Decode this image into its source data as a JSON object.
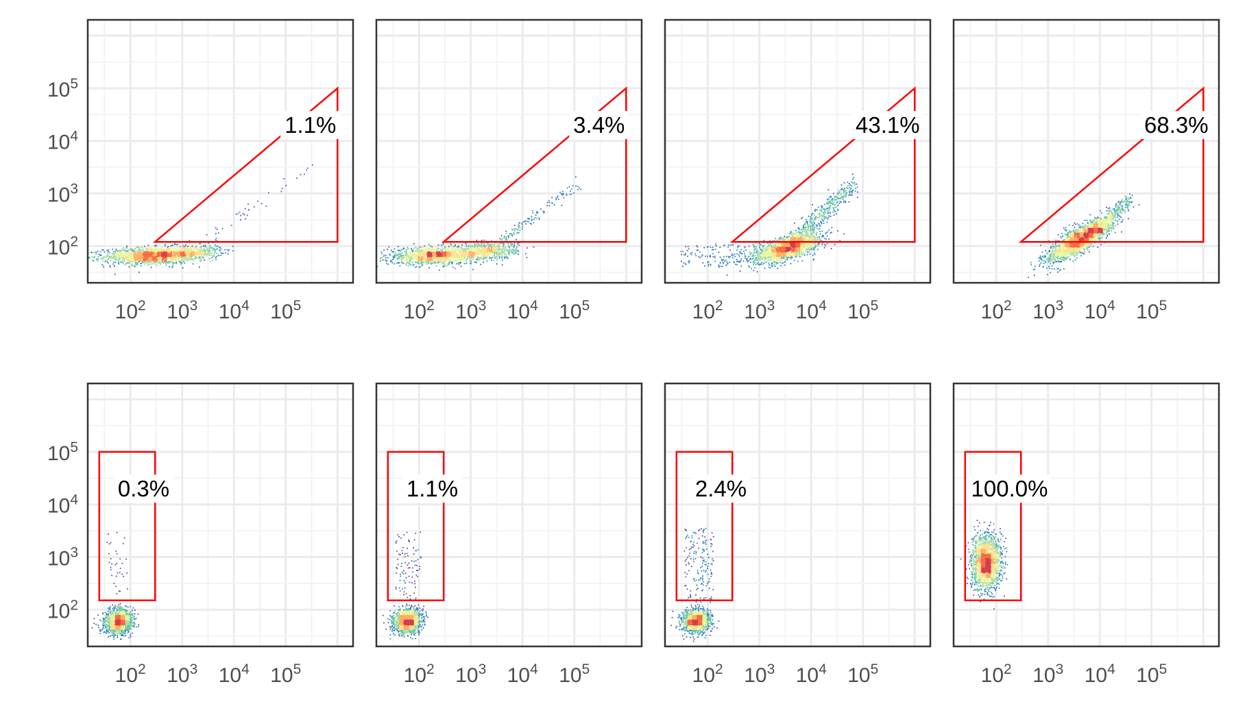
{
  "colors": {
    "gate": "#ff0000",
    "panel_border": "#333333",
    "grid_major": "#ebebeb",
    "grid_minor": "#f2f2f2",
    "tick_text": "#4d4d4d",
    "density_palette": [
      "#5e4fa2",
      "#3288bd",
      "#66c2a5",
      "#abdda4",
      "#e6f598",
      "#fee08b",
      "#fdae61",
      "#f46d43",
      "#d53e4f"
    ]
  },
  "chart_data": [
    {
      "type": "scatter",
      "title": "",
      "xlabel": "",
      "ylabel": "",
      "scale": "log10",
      "xlim": [
        15,
        2000000
      ],
      "ylim": [
        20,
        2000000
      ],
      "grid": true,
      "x_ticks": [
        100,
        1000,
        10000,
        100000
      ],
      "y_ticks": [
        100,
        1000,
        10000,
        100000
      ],
      "x_tick_labels": [
        {
          "base": "10",
          "exp": "2"
        },
        {
          "base": "10",
          "exp": "3"
        },
        {
          "base": "10",
          "exp": "4"
        },
        {
          "base": "10",
          "exp": "5"
        }
      ],
      "y_tick_labels": [
        {
          "base": "10",
          "exp": "2"
        },
        {
          "base": "10",
          "exp": "3"
        },
        {
          "base": "10",
          "exp": "4"
        },
        {
          "base": "10",
          "exp": "5"
        }
      ],
      "gate": {
        "shape": "polygon",
        "points": [
          [
            300,
            120
          ],
          [
            1000000,
            100000
          ],
          [
            1000000,
            120
          ]
        ]
      },
      "panels": [
        {
          "label": "1.1%",
          "label_pos": [
            300000,
            20000
          ],
          "populations": [
            {
              "kind": "blob",
              "cx": 250,
              "cy": 65,
              "sx": 0.45,
              "sy": 0.08,
              "rho": 0.1,
              "n": 1500
            },
            {
              "kind": "blob",
              "cx": 1500,
              "cy": 75,
              "sx": 0.28,
              "sy": 0.07,
              "rho": 0.2,
              "n": 450
            },
            {
              "kind": "trail",
              "x0": 3000,
              "x1": 300000,
              "y0": 120,
              "y1": 3500,
              "jit": 0.07,
              "n": 40
            }
          ]
        },
        {
          "label": "3.4%",
          "label_pos": [
            300000,
            20000
          ],
          "populations": [
            {
              "kind": "blob",
              "cx": 200,
              "cy": 65,
              "sx": 0.45,
              "sy": 0.08,
              "rho": 0.1,
              "n": 1300
            },
            {
              "kind": "blob",
              "cx": 2000,
              "cy": 80,
              "sx": 0.3,
              "sy": 0.08,
              "rho": 0.2,
              "n": 600
            },
            {
              "kind": "trail",
              "x0": 4000,
              "x1": 130000,
              "y0": 130,
              "y1": 1600,
              "jit": 0.06,
              "n": 130
            }
          ]
        },
        {
          "label": "43.1%",
          "label_pos": [
            300000,
            20000
          ],
          "populations": [
            {
              "kind": "blob",
              "cx": 3500,
              "cy": 90,
              "sx": 0.33,
              "sy": 0.13,
              "rho": 0.6,
              "n": 1700
            },
            {
              "kind": "trail",
              "x0": 4000,
              "x1": 70000,
              "y0": 110,
              "y1": 1500,
              "jit": 0.09,
              "n": 500
            },
            {
              "kind": "scatter",
              "x0": 30,
              "x1": 900,
              "y0": 40,
              "y1": 110,
              "n": 140
            }
          ]
        },
        {
          "label": "68.3%",
          "label_pos": [
            300000,
            20000
          ],
          "populations": [
            {
              "kind": "blob",
              "cx": 4000,
              "cy": 130,
              "sx": 0.3,
              "sy": 0.2,
              "rho": 0.8,
              "n": 1900
            },
            {
              "kind": "trail",
              "x0": 6000,
              "x1": 40000,
              "y0": 150,
              "y1": 800,
              "jit": 0.08,
              "n": 400
            }
          ]
        }
      ]
    },
    {
      "type": "scatter",
      "title": "",
      "xlabel": "",
      "ylabel": "",
      "scale": "log10",
      "xlim": [
        15,
        2000000
      ],
      "ylim": [
        20,
        2000000
      ],
      "grid": true,
      "x_ticks": [
        100,
        1000,
        10000,
        100000
      ],
      "y_ticks": [
        100,
        1000,
        10000,
        100000
      ],
      "x_tick_labels": [
        {
          "base": "10",
          "exp": "2"
        },
        {
          "base": "10",
          "exp": "3"
        },
        {
          "base": "10",
          "exp": "4"
        },
        {
          "base": "10",
          "exp": "5"
        }
      ],
      "y_tick_labels": [
        {
          "base": "10",
          "exp": "2"
        },
        {
          "base": "10",
          "exp": "3"
        },
        {
          "base": "10",
          "exp": "4"
        },
        {
          "base": "10",
          "exp": "5"
        }
      ],
      "gate": {
        "shape": "polygon",
        "points": [
          [
            25,
            150
          ],
          [
            25,
            100000
          ],
          [
            300,
            100000
          ],
          [
            300,
            150
          ]
        ]
      },
      "panels": [
        {
          "label": "0.3%",
          "label_pos": [
            180,
            20000
          ],
          "populations": [
            {
              "kind": "blob",
              "cx": 60,
              "cy": 60,
              "sx": 0.13,
              "sy": 0.11,
              "rho": 0.1,
              "n": 1500
            },
            {
              "kind": "scatter",
              "x0": 35,
              "x1": 90,
              "y0": 150,
              "y1": 3000,
              "n": 35
            }
          ]
        },
        {
          "label": "1.1%",
          "label_pos": [
            180,
            20000
          ],
          "populations": [
            {
              "kind": "blob",
              "cx": 60,
              "cy": 60,
              "sx": 0.13,
              "sy": 0.11,
              "rho": 0.1,
              "n": 1500
            },
            {
              "kind": "scatter",
              "x0": 35,
              "x1": 110,
              "y0": 150,
              "y1": 3000,
              "n": 90
            }
          ]
        },
        {
          "label": "2.4%",
          "label_pos": [
            180,
            20000
          ],
          "populations": [
            {
              "kind": "blob",
              "cx": 60,
              "cy": 60,
              "sx": 0.13,
              "sy": 0.11,
              "rho": 0.1,
              "n": 1500
            },
            {
              "kind": "scatter",
              "x0": 35,
              "x1": 130,
              "y0": 150,
              "y1": 3500,
              "n": 160
            }
          ]
        },
        {
          "label": "100.0%",
          "label_pos": [
            180,
            20000
          ],
          "populations": [
            {
              "kind": "blob",
              "cx": 65,
              "cy": 800,
              "sx": 0.14,
              "sy": 0.25,
              "rho": 0.05,
              "n": 1900
            }
          ]
        }
      ]
    }
  ]
}
